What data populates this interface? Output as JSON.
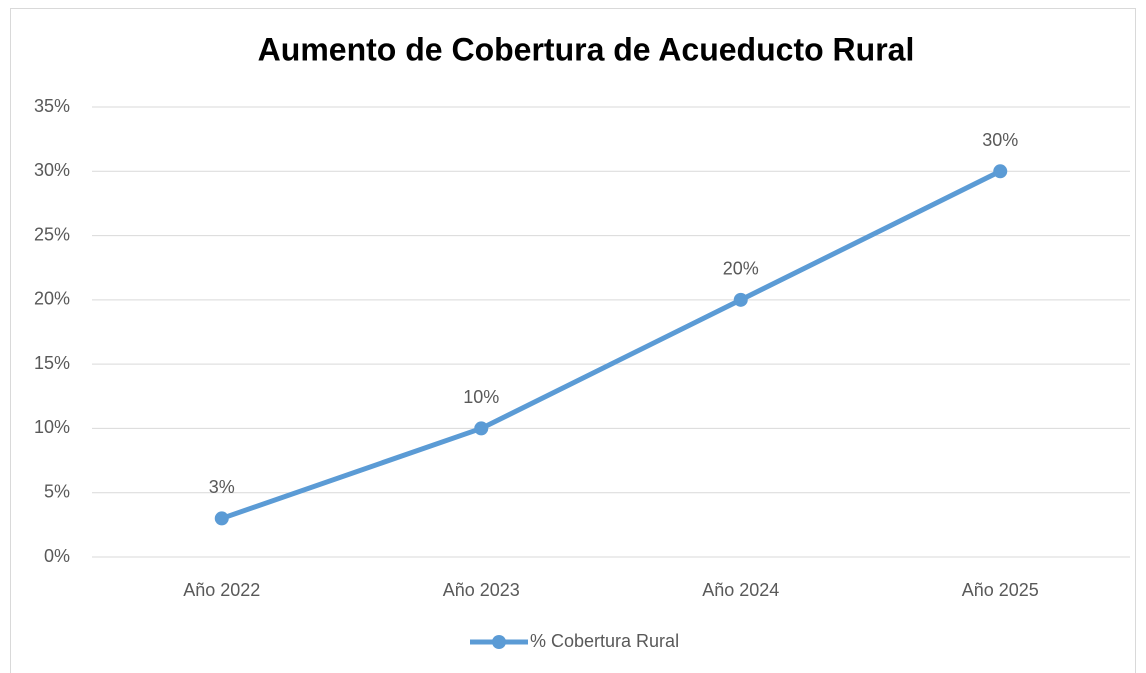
{
  "chart_data": {
    "type": "line",
    "title": "Aumento de Cobertura de Acueducto Rural",
    "categories": [
      "Año 2022",
      "Año 2023",
      "Año 2024",
      "Año 2025"
    ],
    "series": [
      {
        "name": "% Cobertura Rural",
        "color": "#5b9bd5",
        "values": [
          3,
          10,
          20,
          30
        ],
        "value_labels": [
          "3%",
          "10%",
          "20%",
          "30%"
        ]
      }
    ],
    "ylim": [
      0,
      35
    ],
    "yticks": [
      {
        "value": 0,
        "label": "0%"
      },
      {
        "value": 5,
        "label": "5%"
      },
      {
        "value": 10,
        "label": "10%"
      },
      {
        "value": 15,
        "label": "15%"
      },
      {
        "value": 20,
        "label": "20%"
      },
      {
        "value": 25,
        "label": "25%"
      },
      {
        "value": 30,
        "label": "30%"
      },
      {
        "value": 35,
        "label": "35%"
      }
    ],
    "grid": true,
    "legend": "bottom"
  }
}
